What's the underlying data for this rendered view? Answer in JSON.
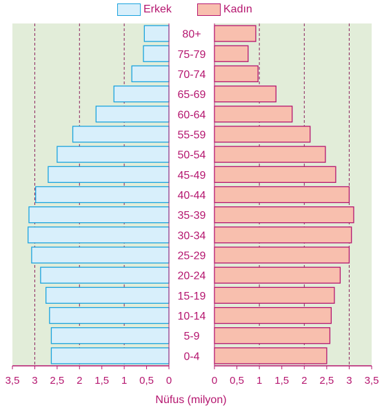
{
  "legend": {
    "male": "Erkek",
    "female": "Kadın"
  },
  "colors": {
    "plot_bg": "#e2edd9",
    "male_fill": "#d8effb",
    "male_stroke": "#1aa3de",
    "female_fill": "#f8bfae",
    "female_stroke": "#b5166f",
    "label": "#b5166f",
    "grid": "#8a1e5a",
    "axis": "#b5166f"
  },
  "chart_data": {
    "type": "bar",
    "subtype": "population-pyramid",
    "categories": [
      "0-4",
      "5-9",
      "10-14",
      "15-19",
      "20-24",
      "25-29",
      "30-34",
      "35-39",
      "40-44",
      "45-49",
      "50-54",
      "55-59",
      "60-64",
      "65-69",
      "70-74",
      "75-79",
      "80+"
    ],
    "series": [
      {
        "name": "Erkek",
        "side": "left",
        "values": [
          2.63,
          2.63,
          2.67,
          2.75,
          2.87,
          3.07,
          3.15,
          3.13,
          2.98,
          2.7,
          2.5,
          2.15,
          1.63,
          1.23,
          0.83,
          0.57,
          0.55
        ]
      },
      {
        "name": "Kadın",
        "side": "right",
        "values": [
          2.5,
          2.57,
          2.6,
          2.67,
          2.8,
          3.0,
          3.05,
          3.1,
          3.0,
          2.7,
          2.47,
          2.13,
          1.73,
          1.37,
          0.97,
          0.75,
          0.92
        ]
      }
    ],
    "xlabel": "Nüfus (milyon)",
    "ylabel": "",
    "xlim": [
      0,
      3.5
    ],
    "xticks": [
      0,
      0.5,
      1,
      1.5,
      2,
      2.5,
      3,
      3.5
    ],
    "xtick_labels": [
      "0",
      "0,5",
      "1",
      "1,5",
      "2",
      "2,5",
      "3",
      "3,5"
    ],
    "grid": "vertical dashed at 1, 2, 3"
  }
}
